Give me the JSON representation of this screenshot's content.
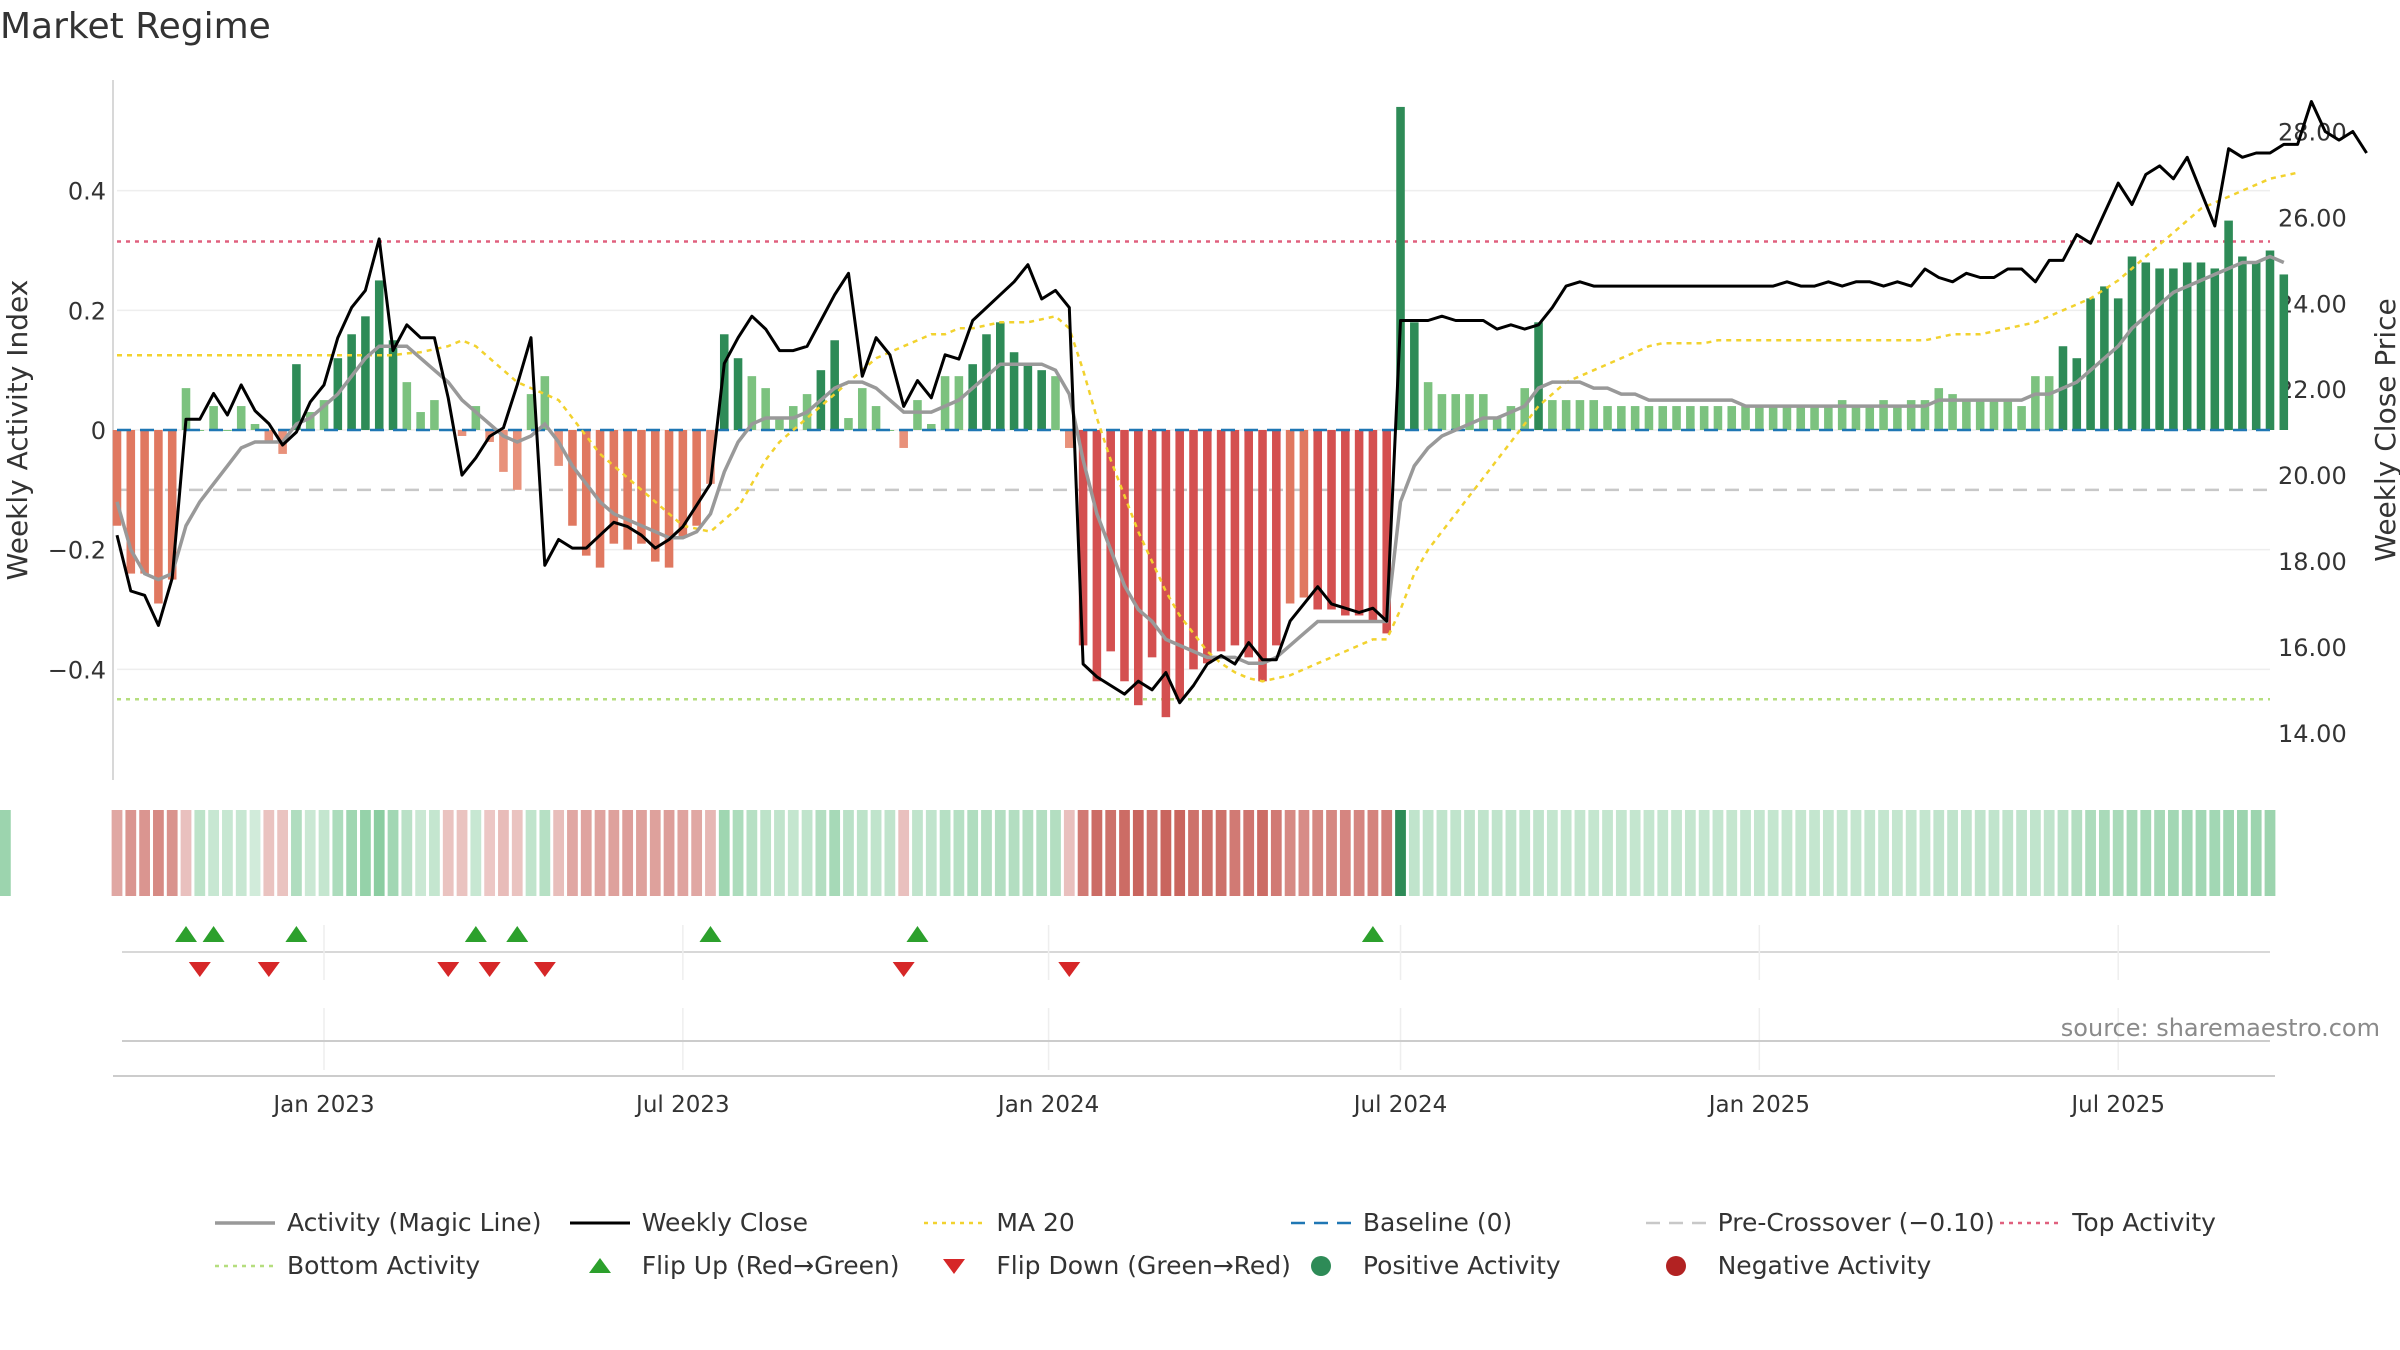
{
  "title": "Market Regime",
  "source": "source: sharemaestro.com",
  "legend": [
    {
      "key": "magic",
      "label": "Activity (Magic Line)"
    },
    {
      "key": "close",
      "label": "Weekly Close"
    },
    {
      "key": "ma20",
      "label": "MA 20"
    },
    {
      "key": "baseline",
      "label": "Baseline (0)"
    },
    {
      "key": "precross",
      "label": "Pre-Crossover (−0.10)"
    },
    {
      "key": "top",
      "label": "Top Activity"
    },
    {
      "key": "bottom",
      "label": "Bottom Activity"
    },
    {
      "key": "flipup",
      "label": "Flip Up (Red→Green)"
    },
    {
      "key": "flipdown",
      "label": "Flip Down (Green→Red)"
    },
    {
      "key": "pos",
      "label": "Positive Activity"
    },
    {
      "key": "neg",
      "label": "Negative Activity"
    }
  ],
  "colors": {
    "magic": "#999999",
    "close": "#000000",
    "ma20": "#f2d22e",
    "baseline": "#1f77b4",
    "precross": "#c8c8c8",
    "top": "#e0607e",
    "bottom": "#b5de7e",
    "flipup": "#2ca02c",
    "flipdown": "#d62728",
    "pos": "#2e8b57",
    "neg": "#b22222"
  },
  "chart_data": {
    "type": "bar",
    "ylabel_left": "Weekly Activity Index",
    "ylabel_right": "Weekly Close Price",
    "ylim_left": [
      -0.585,
      0.585
    ],
    "ylim_right": [
      12.9,
      29.2
    ],
    "left_ticks": [
      "−0.4",
      "−0.2",
      "0",
      "0.2",
      "0.4"
    ],
    "left_tick_values": [
      -0.4,
      -0.2,
      0,
      0.2,
      0.4
    ],
    "right_ticks": [
      "14.00",
      "16.00",
      "18.00",
      "20.00",
      "22.00",
      "24.00",
      "26.00",
      "28.00"
    ],
    "right_tick_values": [
      14,
      16,
      18,
      20,
      22,
      24,
      26,
      28
    ],
    "x_ticks": [
      "Jan 2023",
      "Jul 2023",
      "Jan 2024",
      "Jul 2024",
      "Jan 2025",
      "Jul 2025"
    ],
    "x_tick_weeks": [
      15,
      41,
      67.5,
      93,
      119,
      145
    ],
    "top_activity": 0.315,
    "bottom_activity": -0.45,
    "pre_crossover": -0.1,
    "baseline": 0,
    "weeks": 157,
    "activity": [
      -0.16,
      -0.24,
      -0.24,
      -0.29,
      -0.25,
      0.07,
      0.0,
      0.04,
      0.0,
      0.04,
      0.01,
      -0.02,
      -0.04,
      0.11,
      0.03,
      0.05,
      0.12,
      0.16,
      0.19,
      0.25,
      0.15,
      0.08,
      0.03,
      0.05,
      0.0,
      -0.01,
      0.04,
      -0.02,
      -0.07,
      -0.1,
      0.06,
      0.09,
      -0.06,
      -0.16,
      -0.21,
      -0.23,
      -0.19,
      -0.2,
      -0.19,
      -0.22,
      -0.23,
      -0.18,
      -0.16,
      -0.09,
      0.16,
      0.12,
      0.09,
      0.07,
      0.02,
      0.04,
      0.06,
      0.1,
      0.15,
      0.02,
      0.07,
      0.04,
      0.0,
      -0.03,
      0.05,
      0.01,
      0.09,
      0.09,
      0.11,
      0.16,
      0.18,
      0.13,
      0.11,
      0.1,
      0.09,
      -0.03,
      -0.36,
      -0.42,
      -0.37,
      -0.42,
      -0.46,
      -0.38,
      -0.48,
      -0.45,
      -0.4,
      -0.39,
      -0.37,
      -0.36,
      -0.38,
      -0.42,
      -0.36,
      -0.29,
      -0.28,
      -0.3,
      -0.3,
      -0.31,
      -0.31,
      -0.32,
      -0.34,
      0.54,
      0.18,
      0.08,
      0.06,
      0.06,
      0.06,
      0.06,
      0.02,
      0.04,
      0.07,
      0.18,
      0.05,
      0.05,
      0.05,
      0.05,
      0.04,
      0.04,
      0.04,
      0.04,
      0.04,
      0.04,
      0.04,
      0.04,
      0.04,
      0.04,
      0.04,
      0.04,
      0.04,
      0.04,
      0.04,
      0.04,
      0.04,
      0.05,
      0.04,
      0.04,
      0.05,
      0.04,
      0.05,
      0.05,
      0.07,
      0.06,
      0.05,
      0.05,
      0.05,
      0.05,
      0.04,
      0.09,
      0.09,
      0.14,
      0.12,
      0.22,
      0.24,
      0.22,
      0.29,
      0.28,
      0.27,
      0.27,
      0.28,
      0.28,
      0.27,
      0.35,
      0.29,
      0.28,
      0.3,
      0.26
    ],
    "magic_line": [
      -0.12,
      -0.2,
      -0.24,
      -0.25,
      -0.24,
      -0.16,
      -0.12,
      -0.09,
      -0.06,
      -0.03,
      -0.02,
      -0.02,
      -0.02,
      0.01,
      0.02,
      0.04,
      0.06,
      0.09,
      0.12,
      0.14,
      0.14,
      0.14,
      0.12,
      0.1,
      0.08,
      0.05,
      0.03,
      0.01,
      -0.01,
      -0.02,
      -0.01,
      0.01,
      -0.02,
      -0.06,
      -0.09,
      -0.12,
      -0.14,
      -0.15,
      -0.16,
      -0.17,
      -0.18,
      -0.18,
      -0.17,
      -0.14,
      -0.07,
      -0.02,
      0.01,
      0.02,
      0.02,
      0.02,
      0.03,
      0.05,
      0.07,
      0.08,
      0.08,
      0.07,
      0.05,
      0.03,
      0.03,
      0.03,
      0.04,
      0.05,
      0.07,
      0.09,
      0.11,
      0.11,
      0.11,
      0.11,
      0.1,
      0.06,
      -0.05,
      -0.14,
      -0.2,
      -0.26,
      -0.3,
      -0.32,
      -0.35,
      -0.36,
      -0.37,
      -0.38,
      -0.38,
      -0.38,
      -0.39,
      -0.39,
      -0.38,
      -0.36,
      -0.34,
      -0.32,
      -0.32,
      -0.32,
      -0.32,
      -0.32,
      -0.32,
      -0.12,
      -0.06,
      -0.03,
      -0.01,
      0.0,
      0.01,
      0.02,
      0.02,
      0.03,
      0.04,
      0.07,
      0.08,
      0.08,
      0.08,
      0.07,
      0.07,
      0.06,
      0.06,
      0.05,
      0.05,
      0.05,
      0.05,
      0.05,
      0.05,
      0.05,
      0.04,
      0.04,
      0.04,
      0.04,
      0.04,
      0.04,
      0.04,
      0.04,
      0.04,
      0.04,
      0.04,
      0.04,
      0.04,
      0.04,
      0.05,
      0.05,
      0.05,
      0.05,
      0.05,
      0.05,
      0.05,
      0.06,
      0.06,
      0.07,
      0.08,
      0.1,
      0.12,
      0.14,
      0.17,
      0.19,
      0.21,
      0.23,
      0.24,
      0.25,
      0.26,
      0.27,
      0.28,
      0.28,
      0.29,
      0.28
    ],
    "ma20": [
      0.125,
      0.125,
      0.125,
      0.125,
      0.125,
      0.125,
      0.125,
      0.125,
      0.125,
      0.125,
      0.125,
      0.125,
      0.125,
      0.125,
      0.125,
      0.125,
      0.125,
      0.125,
      0.125,
      0.125,
      0.125,
      0.128,
      0.13,
      0.135,
      0.14,
      0.15,
      0.14,
      0.12,
      0.1,
      0.08,
      0.07,
      0.06,
      0.05,
      0.02,
      -0.01,
      -0.04,
      -0.06,
      -0.08,
      -0.1,
      -0.12,
      -0.14,
      -0.16,
      -0.165,
      -0.17,
      -0.15,
      -0.13,
      -0.09,
      -0.05,
      -0.02,
      0.0,
      0.02,
      0.04,
      0.06,
      0.08,
      0.1,
      0.12,
      0.13,
      0.14,
      0.15,
      0.16,
      0.16,
      0.17,
      0.17,
      0.175,
      0.18,
      0.18,
      0.18,
      0.185,
      0.19,
      0.17,
      0.1,
      0.02,
      -0.05,
      -0.11,
      -0.17,
      -0.22,
      -0.27,
      -0.31,
      -0.34,
      -0.37,
      -0.39,
      -0.405,
      -0.415,
      -0.42,
      -0.415,
      -0.41,
      -0.4,
      -0.39,
      -0.38,
      -0.37,
      -0.36,
      -0.35,
      -0.35,
      -0.3,
      -0.24,
      -0.2,
      -0.17,
      -0.14,
      -0.11,
      -0.08,
      -0.05,
      -0.02,
      0.01,
      0.04,
      0.06,
      0.08,
      0.09,
      0.1,
      0.11,
      0.12,
      0.13,
      0.14,
      0.145,
      0.145,
      0.145,
      0.145,
      0.15,
      0.15,
      0.15,
      0.15,
      0.15,
      0.15,
      0.15,
      0.15,
      0.15,
      0.15,
      0.15,
      0.15,
      0.15,
      0.15,
      0.15,
      0.15,
      0.155,
      0.16,
      0.16,
      0.16,
      0.165,
      0.17,
      0.175,
      0.18,
      0.19,
      0.2,
      0.21,
      0.22,
      0.235,
      0.25,
      0.27,
      0.29,
      0.31,
      0.33,
      0.35,
      0.37,
      0.38,
      0.39,
      0.4,
      0.41,
      0.42,
      0.425,
      0.43
    ],
    "weekly_close": [
      18.6,
      17.3,
      17.2,
      16.5,
      17.6,
      21.3,
      21.3,
      21.9,
      21.4,
      22.1,
      21.5,
      21.2,
      20.7,
      21.0,
      21.7,
      22.1,
      23.2,
      23.9,
      24.3,
      25.5,
      22.9,
      23.5,
      23.2,
      23.2,
      21.8,
      20.0,
      20.4,
      20.9,
      21.1,
      22.1,
      23.2,
      17.9,
      18.5,
      18.3,
      18.3,
      18.6,
      18.9,
      18.8,
      18.6,
      18.3,
      18.5,
      18.8,
      19.3,
      19.8,
      22.6,
      23.2,
      23.7,
      23.4,
      22.9,
      22.9,
      23.0,
      23.6,
      24.2,
      24.7,
      22.3,
      23.2,
      22.8,
      21.6,
      22.2,
      21.8,
      22.8,
      22.7,
      23.6,
      23.9,
      24.2,
      24.5,
      24.9,
      24.1,
      24.3,
      23.9,
      15.6,
      15.3,
      15.1,
      14.9,
      15.2,
      15.0,
      15.4,
      14.7,
      15.1,
      15.6,
      15.8,
      15.6,
      16.1,
      15.7,
      15.7,
      16.6,
      17.0,
      17.4,
      17.0,
      16.9,
      16.8,
      16.9,
      16.6,
      23.6,
      23.6,
      23.6,
      23.7,
      23.6,
      23.6,
      23.6,
      23.4,
      23.5,
      23.4,
      23.5,
      23.9,
      24.4,
      24.5,
      24.4,
      24.4,
      24.4,
      24.4,
      24.4,
      24.4,
      24.4,
      24.4,
      24.4,
      24.4,
      24.4,
      24.4,
      24.4,
      24.4,
      24.5,
      24.4,
      24.4,
      24.5,
      24.4,
      24.5,
      24.5,
      24.4,
      24.5,
      24.4,
      24.8,
      24.6,
      24.5,
      24.7,
      24.6,
      24.6,
      24.8,
      24.8,
      24.5,
      25.0,
      25.0,
      25.6,
      25.4,
      26.1,
      26.8,
      26.3,
      27.0,
      27.2,
      26.9,
      27.4,
      26.6,
      25.8,
      27.6,
      27.4,
      27.5,
      27.5,
      27.7,
      27.7,
      28.7,
      28.0,
      27.8,
      28.0,
      27.5
    ],
    "regime_weeks": [
      0,
      1,
      2,
      3,
      4,
      5,
      6,
      7,
      8,
      9,
      10,
      11,
      12,
      13,
      14,
      15,
      16,
      17,
      18,
      19,
      20,
      21,
      22,
      23,
      24,
      25,
      26,
      27,
      28,
      29,
      30,
      31,
      32,
      33,
      34,
      35,
      36,
      37,
      38,
      39,
      40,
      41,
      42,
      43,
      44,
      45,
      46,
      47,
      48,
      49,
      50,
      51,
      52,
      53,
      54,
      55,
      56,
      57,
      58,
      59,
      60,
      61,
      62,
      63,
      64,
      65,
      66,
      67,
      68,
      69,
      70,
      71,
      72,
      73,
      74,
      75,
      76,
      77,
      78,
      79,
      80,
      81,
      82,
      83,
      84,
      85,
      86,
      87,
      88,
      89,
      90,
      91,
      92,
      93,
      94,
      95,
      96,
      97,
      98,
      99,
      100,
      101,
      102,
      103,
      104,
      105,
      106,
      107,
      108,
      109,
      110,
      111,
      112,
      113,
      114,
      115,
      116,
      117,
      118,
      119,
      120,
      121,
      122,
      123,
      124,
      125,
      126,
      127,
      128,
      129,
      130,
      131,
      132,
      133,
      134,
      135,
      136,
      137,
      138,
      139,
      140,
      141,
      142,
      143,
      144,
      145,
      146,
      147,
      148,
      149,
      150,
      151,
      152,
      153,
      154,
      155,
      156
    ],
    "regime_band": [
      -0.16,
      -0.24,
      -0.24,
      -0.29,
      -0.25,
      -0.05,
      0.07,
      0.04,
      0.04,
      0.04,
      0.01,
      -0.04,
      -0.04,
      0.11,
      0.03,
      0.05,
      0.12,
      0.16,
      0.19,
      0.22,
      0.15,
      0.08,
      0.03,
      0.05,
      -0.04,
      -0.04,
      0.04,
      -0.02,
      -0.07,
      -0.04,
      0.06,
      0.09,
      -0.06,
      -0.16,
      -0.18,
      -0.18,
      -0.19,
      -0.2,
      -0.19,
      -0.19,
      -0.2,
      -0.18,
      -0.16,
      -0.09,
      0.16,
      0.12,
      0.09,
      0.07,
      0.06,
      0.05,
      0.06,
      0.1,
      0.14,
      0.08,
      0.07,
      0.06,
      0.06,
      -0.05,
      0.06,
      0.06,
      0.09,
      0.09,
      0.11,
      0.1,
      0.1,
      0.1,
      0.1,
      0.1,
      0.1,
      -0.05,
      -0.36,
      -0.42,
      -0.4,
      -0.42,
      -0.46,
      -0.4,
      -0.48,
      -0.45,
      -0.4,
      -0.4,
      -0.4,
      -0.36,
      -0.38,
      -0.42,
      -0.36,
      -0.29,
      -0.28,
      -0.3,
      -0.3,
      -0.31,
      -0.31,
      -0.32,
      -0.34,
      0.54,
      0.06,
      0.06,
      0.06,
      0.06,
      0.06,
      0.06,
      0.06,
      0.06,
      0.06,
      0.06,
      0.05,
      0.05,
      0.05,
      0.05,
      0.05,
      0.05,
      0.05,
      0.05,
      0.05,
      0.05,
      0.05,
      0.05,
      0.05,
      0.05,
      0.05,
      0.05,
      0.05,
      0.05,
      0.05,
      0.05,
      0.05,
      0.05,
      0.05,
      0.05,
      0.05,
      0.05,
      0.05,
      0.05,
      0.06,
      0.06,
      0.06,
      0.06,
      0.06,
      0.06,
      0.06,
      0.06,
      0.06,
      0.08,
      0.1,
      0.12,
      0.13,
      0.13,
      0.14,
      0.14,
      0.14,
      0.15,
      0.15,
      0.15,
      0.15,
      0.16,
      0.17,
      0.17,
      0.17,
      0.17
    ],
    "flip_up_weeks": [
      5,
      7,
      13,
      26,
      29,
      43,
      58,
      91
    ],
    "flip_down_weeks": [
      6,
      11,
      24,
      27,
      31,
      57,
      69
    ]
  }
}
